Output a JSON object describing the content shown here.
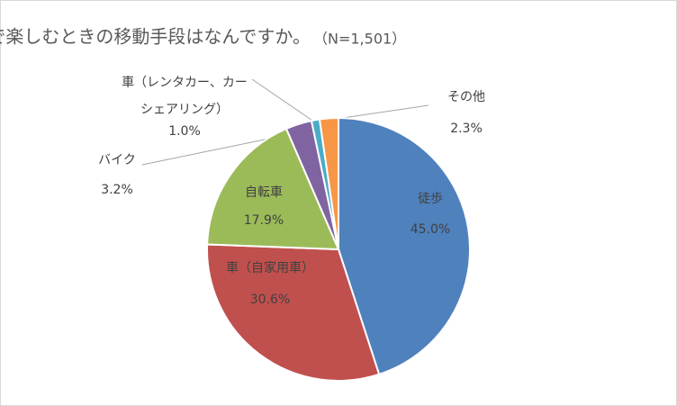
{
  "chart_data": {
    "type": "pie",
    "title": "屋外で楽しむときの移動手段はなんですか。",
    "subtitle": "（N=1,501）",
    "categories": [
      "徒歩",
      "車（自家用車）",
      "自転車",
      "バイク",
      "車（レンタカー、カーシェアリング）",
      "その他"
    ],
    "values": [
      45.0,
      30.6,
      17.9,
      3.2,
      1.0,
      2.3
    ],
    "value_labels": [
      "45.0%",
      "30.6%",
      "17.9%",
      "3.2%",
      "1.0%",
      "2.3%"
    ],
    "colors": [
      "#4f81bd",
      "#c0504d",
      "#9bbb59",
      "#8064a2",
      "#4bacc6",
      "#f79646"
    ]
  }
}
